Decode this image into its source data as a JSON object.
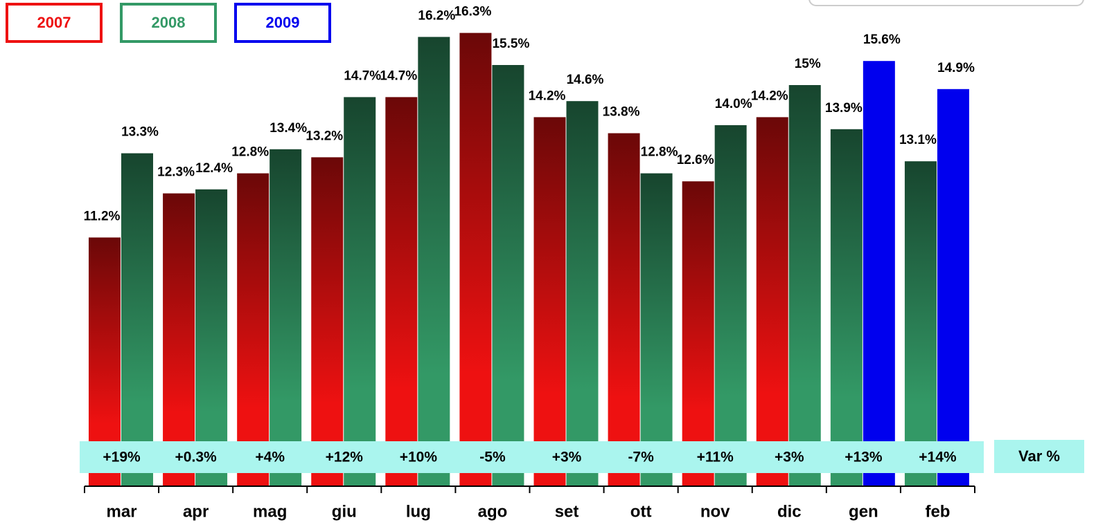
{
  "chart_data": {
    "type": "bar",
    "categories": [
      "mar",
      "apr",
      "mag",
      "giu",
      "lug",
      "ago",
      "set",
      "ott",
      "nov",
      "dic",
      "gen",
      "feb"
    ],
    "series": [
      {
        "name": "2007",
        "color": "#ee1111",
        "values": [
          11.2,
          12.3,
          12.8,
          13.2,
          14.7,
          16.3,
          14.2,
          13.8,
          12.6,
          14.2,
          null,
          null
        ],
        "value_labels": [
          "11.2%",
          "12.3%",
          "12.8%",
          "13.2%",
          "14.7%",
          "16.3%",
          "14.2%",
          "13.8%",
          "12.6%",
          "14.2%",
          null,
          null
        ]
      },
      {
        "name": "2008",
        "color": "#339966",
        "values": [
          13.3,
          12.4,
          13.4,
          14.7,
          16.2,
          15.5,
          14.6,
          12.8,
          14.0,
          15,
          13.9,
          13.1
        ],
        "value_labels": [
          "13.3%",
          "12.4%",
          "13.4%",
          "14.7%",
          "16.2%",
          "15.5%",
          "14.6%",
          "12.8%",
          "14.0%",
          "15%",
          "13.9%",
          "13.1%"
        ]
      },
      {
        "name": "2009",
        "color": "#0000ee",
        "values": [
          null,
          null,
          null,
          null,
          null,
          null,
          null,
          null,
          null,
          null,
          15.6,
          14.9
        ],
        "value_labels": [
          null,
          null,
          null,
          null,
          null,
          null,
          null,
          null,
          null,
          null,
          "15.6%",
          "14.9%"
        ]
      }
    ],
    "variation": {
      "label": "Var %",
      "values": [
        19,
        0.3,
        4,
        12,
        10,
        -5,
        3,
        -7,
        11,
        3,
        13,
        14
      ],
      "value_labels": [
        "+19%",
        "+0.3%",
        "+4%",
        "+12%",
        "+10%",
        "-5%",
        "+3%",
        "-7%",
        "+11%",
        "+3%",
        "+13%",
        "+14%"
      ]
    },
    "ylim": [
      5,
      17
    ]
  }
}
